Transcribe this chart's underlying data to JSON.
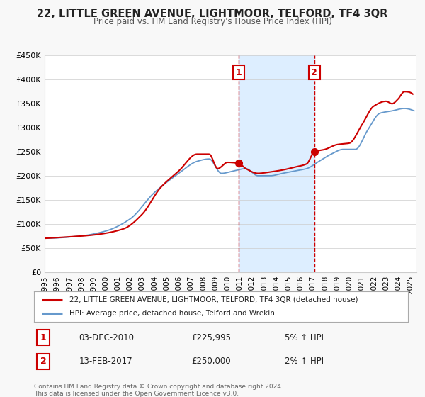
{
  "title": "22, LITTLE GREEN AVENUE, LIGHTMOOR, TELFORD, TF4 3QR",
  "subtitle": "Price paid vs. HM Land Registry's House Price Index (HPI)",
  "legend_label_red": "22, LITTLE GREEN AVENUE, LIGHTMOOR, TELFORD, TF4 3QR (detached house)",
  "legend_label_blue": "HPI: Average price, detached house, Telford and Wrekin",
  "sale1_label": "1",
  "sale1_date": "03-DEC-2010",
  "sale1_price": "£225,995",
  "sale1_hpi": "5% ↑ HPI",
  "sale2_label": "2",
  "sale2_date": "13-FEB-2017",
  "sale2_price": "£250,000",
  "sale2_hpi": "2% ↑ HPI",
  "footnote1": "Contains HM Land Registry data © Crown copyright and database right 2024.",
  "footnote2": "This data is licensed under the Open Government Licence v3.0.",
  "red_color": "#cc0000",
  "blue_color": "#6699cc",
  "shading_color": "#ddeeff",
  "marker1_x": 2010.92,
  "marker1_y": 225995,
  "marker2_x": 2017.12,
  "marker2_y": 250000,
  "vline1_x": 2010.92,
  "vline2_x": 2017.12,
  "ylim": [
    0,
    450000
  ],
  "xlim_start": 1995,
  "xlim_end": 2025.5,
  "ylabel_ticks": [
    0,
    50000,
    100000,
    150000,
    200000,
    250000,
    300000,
    350000,
    400000,
    450000
  ],
  "ytick_labels": [
    "£0",
    "£50K",
    "£100K",
    "£150K",
    "£200K",
    "£250K",
    "£300K",
    "£350K",
    "£400K",
    "£450K"
  ],
  "xtick_years": [
    1995,
    1996,
    1997,
    1998,
    1999,
    2000,
    2001,
    2002,
    2003,
    2004,
    2005,
    2006,
    2007,
    2008,
    2009,
    2010,
    2011,
    2012,
    2013,
    2014,
    2015,
    2016,
    2017,
    2018,
    2019,
    2020,
    2021,
    2022,
    2023,
    2024,
    2025
  ],
  "background_color": "#f8f8f8",
  "plot_bg_color": "#ffffff",
  "hpi_waypoints_x": [
    1995.0,
    1998.0,
    2000.0,
    2002.0,
    2004.0,
    2006.0,
    2007.5,
    2008.5,
    2009.5,
    2010.5,
    2011.5,
    2012.5,
    2013.5,
    2014.5,
    2015.5,
    2016.5,
    2017.5,
    2018.5,
    2019.5,
    2020.5,
    2021.5,
    2022.5,
    2023.5,
    2024.5,
    2025.3
  ],
  "hpi_waypoints_y": [
    70000,
    75000,
    85000,
    110000,
    165000,
    205000,
    230000,
    235000,
    205000,
    210000,
    215000,
    200000,
    200000,
    205000,
    210000,
    215000,
    230000,
    245000,
    255000,
    255000,
    295000,
    330000,
    335000,
    340000,
    335000
  ],
  "red_waypoints_x": [
    1995.0,
    1997.0,
    1999.0,
    2001.5,
    2003.0,
    2004.5,
    2006.0,
    2007.5,
    2008.5,
    2009.2,
    2010.0,
    2010.92,
    2011.5,
    2012.5,
    2013.5,
    2014.5,
    2015.5,
    2016.5,
    2017.12,
    2018.0,
    2019.0,
    2020.0,
    2021.0,
    2022.0,
    2023.0,
    2023.5,
    2024.0,
    2024.5,
    2025.2
  ],
  "red_waypoints_y": [
    70000,
    73000,
    77000,
    90000,
    120000,
    175000,
    210000,
    245000,
    245000,
    215000,
    228000,
    225995,
    215000,
    205000,
    208000,
    212000,
    218000,
    225000,
    250000,
    255000,
    265000,
    268000,
    305000,
    345000,
    355000,
    350000,
    360000,
    375000,
    370000
  ]
}
